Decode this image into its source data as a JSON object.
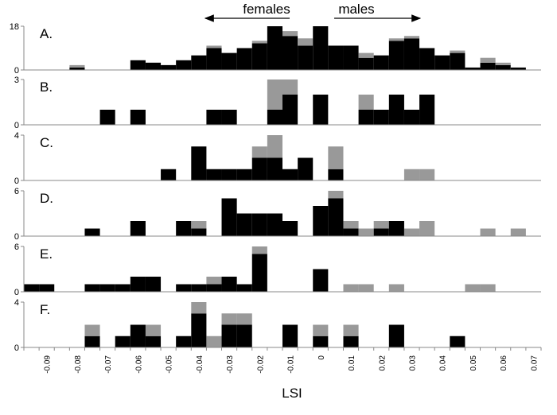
{
  "chart_data": {
    "type": "bar",
    "stacked": true,
    "title": "",
    "xlabel": "LSI",
    "xlim": [
      -0.095,
      0.075
    ],
    "bin_width": 0.005,
    "x_ticks": [
      "-0.09",
      "-0.08",
      "-0.07",
      "-0.06",
      "-0.05",
      "-0.04",
      "-0.03",
      "-0.02",
      "-0.01",
      "0",
      "0.01",
      "0.02",
      "0.03",
      "0.04",
      "0.05",
      "0.06",
      "0.07"
    ],
    "colors": {
      "black": "#000000",
      "gray": "#999999"
    },
    "annotations": [
      {
        "text": "females",
        "arrow": "left"
      },
      {
        "text": "males",
        "arrow": "right"
      }
    ],
    "panels": [
      {
        "label": "A.",
        "ymax": 18,
        "yticks": [
          "0",
          "18"
        ],
        "bins": [
          [
            -0.08,
            1,
            1
          ],
          [
            -0.06,
            4,
            0
          ],
          [
            -0.055,
            3,
            0
          ],
          [
            -0.05,
            2,
            0
          ],
          [
            -0.045,
            4,
            0
          ],
          [
            -0.04,
            6,
            0
          ],
          [
            -0.035,
            9,
            1
          ],
          [
            -0.03,
            7,
            0
          ],
          [
            -0.025,
            9,
            0
          ],
          [
            -0.02,
            11,
            1
          ],
          [
            -0.015,
            18,
            0
          ],
          [
            -0.01,
            14,
            2
          ],
          [
            -0.005,
            10,
            3
          ],
          [
            0.0,
            18,
            0
          ],
          [
            0.005,
            10,
            0
          ],
          [
            0.01,
            10,
            0
          ],
          [
            0.015,
            5,
            2
          ],
          [
            0.02,
            6,
            0
          ],
          [
            0.025,
            12,
            1
          ],
          [
            0.03,
            13,
            1
          ],
          [
            0.035,
            9,
            0
          ],
          [
            0.04,
            6,
            0
          ],
          [
            0.045,
            7,
            1
          ],
          [
            0.05,
            1,
            0
          ],
          [
            0.055,
            3,
            2
          ],
          [
            0.06,
            2,
            1
          ],
          [
            0.065,
            1,
            0
          ]
        ]
      },
      {
        "label": "B.",
        "ymax": 3,
        "yticks": [
          "0",
          "3"
        ],
        "bins": [
          [
            -0.07,
            1,
            0
          ],
          [
            -0.06,
            1,
            0
          ],
          [
            -0.035,
            1,
            0
          ],
          [
            -0.03,
            1,
            0
          ],
          [
            -0.015,
            1,
            2
          ],
          [
            -0.01,
            2,
            1
          ],
          [
            0.0,
            2,
            0
          ],
          [
            0.015,
            1,
            1
          ],
          [
            0.02,
            1,
            0
          ],
          [
            0.025,
            2,
            0
          ],
          [
            0.03,
            1,
            0
          ],
          [
            0.035,
            2,
            0
          ]
        ]
      },
      {
        "label": "C.",
        "ymax": 4,
        "yticks": [
          "0",
          "4"
        ],
        "bins": [
          [
            -0.05,
            1,
            0
          ],
          [
            -0.04,
            3,
            0
          ],
          [
            -0.035,
            1,
            0
          ],
          [
            -0.03,
            1,
            0
          ],
          [
            -0.025,
            1,
            0
          ],
          [
            -0.02,
            2,
            1
          ],
          [
            -0.015,
            2,
            2
          ],
          [
            -0.01,
            1,
            0
          ],
          [
            -0.005,
            2,
            0
          ],
          [
            0.005,
            1,
            2
          ],
          [
            0.03,
            0,
            1
          ],
          [
            0.035,
            0,
            1
          ]
        ]
      },
      {
        "label": "D.",
        "ymax": 6,
        "yticks": [
          "0",
          "6"
        ],
        "bins": [
          [
            -0.075,
            1,
            0
          ],
          [
            -0.06,
            2,
            0
          ],
          [
            -0.045,
            2,
            0
          ],
          [
            -0.04,
            1,
            1
          ],
          [
            -0.03,
            5,
            0
          ],
          [
            -0.025,
            3,
            0
          ],
          [
            -0.02,
            3,
            0
          ],
          [
            -0.015,
            3,
            0
          ],
          [
            -0.01,
            2,
            0
          ],
          [
            0.0,
            4,
            0
          ],
          [
            0.005,
            5,
            1
          ],
          [
            0.01,
            1,
            1
          ],
          [
            0.015,
            0,
            1
          ],
          [
            0.02,
            1,
            1
          ],
          [
            0.025,
            2,
            0
          ],
          [
            0.03,
            0,
            1
          ],
          [
            0.035,
            0,
            2
          ],
          [
            0.055,
            0,
            1
          ],
          [
            0.065,
            0,
            1
          ]
        ]
      },
      {
        "label": "E.",
        "ymax": 6,
        "yticks": [
          "0",
          "6"
        ],
        "bins": [
          [
            -0.095,
            1,
            0
          ],
          [
            -0.09,
            1,
            0
          ],
          [
            -0.075,
            1,
            0
          ],
          [
            -0.07,
            1,
            0
          ],
          [
            -0.065,
            1,
            0
          ],
          [
            -0.06,
            2,
            0
          ],
          [
            -0.055,
            2,
            0
          ],
          [
            -0.045,
            1,
            0
          ],
          [
            -0.04,
            1,
            0
          ],
          [
            -0.035,
            1,
            1
          ],
          [
            -0.03,
            2,
            0
          ],
          [
            -0.025,
            1,
            0
          ],
          [
            -0.02,
            5,
            1
          ],
          [
            0.0,
            3,
            0
          ],
          [
            0.01,
            0,
            1
          ],
          [
            0.015,
            0,
            1
          ],
          [
            0.025,
            0,
            1
          ],
          [
            0.05,
            0,
            1
          ],
          [
            0.055,
            0,
            1
          ]
        ]
      },
      {
        "label": "F.",
        "ymax": 4,
        "yticks": [
          "0",
          "4"
        ],
        "bins": [
          [
            -0.075,
            1,
            1
          ],
          [
            -0.065,
            1,
            0
          ],
          [
            -0.06,
            2,
            0
          ],
          [
            -0.055,
            1,
            1
          ],
          [
            -0.045,
            1,
            0
          ],
          [
            -0.04,
            3,
            1
          ],
          [
            -0.035,
            0,
            1
          ],
          [
            -0.03,
            2,
            1
          ],
          [
            -0.025,
            2,
            1
          ],
          [
            -0.01,
            2,
            0
          ],
          [
            0.0,
            1,
            1
          ],
          [
            0.01,
            1,
            1
          ],
          [
            0.025,
            2,
            0
          ],
          [
            0.045,
            1,
            0
          ]
        ]
      }
    ]
  }
}
